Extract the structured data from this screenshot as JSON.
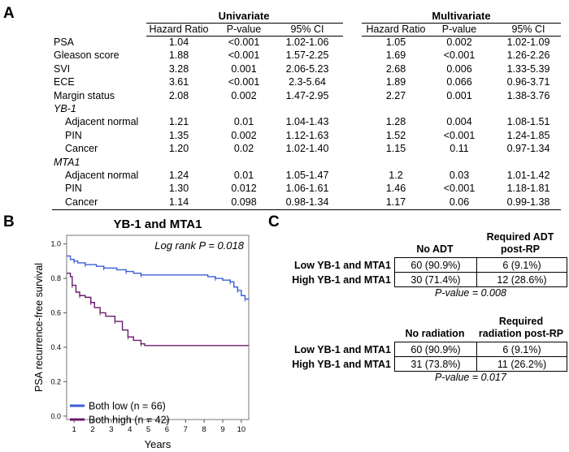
{
  "panel_a": {
    "letter": "A",
    "univariate_title": "Univariate",
    "multivariate_title": "Multivariate",
    "columns": [
      "Hazard Ratio",
      "P-value",
      "95% CI"
    ],
    "rows": [
      {
        "label": "PSA",
        "indent": false,
        "italic": false,
        "u": [
          "1.04",
          "<0.001",
          "1.02-1.06"
        ],
        "m": [
          "1.05",
          "0.002",
          "1.02-1.09"
        ]
      },
      {
        "label": "Gleason score",
        "indent": false,
        "italic": false,
        "u": [
          "1.88",
          "<0.001",
          "1.57-2.25"
        ],
        "m": [
          "1.69",
          "<0.001",
          "1.26-2.26"
        ]
      },
      {
        "label": "SVI",
        "indent": false,
        "italic": false,
        "u": [
          "3.28",
          "0.001",
          "2.06-5.23"
        ],
        "m": [
          "2.68",
          "0.006",
          "1.33-5.39"
        ]
      },
      {
        "label": "ECE",
        "indent": false,
        "italic": false,
        "u": [
          "3.61",
          "<0.001",
          "2.3-5.64"
        ],
        "m": [
          "1.89",
          "0.066",
          "0.96-3.71"
        ]
      },
      {
        "label": "Margin status",
        "indent": false,
        "italic": false,
        "u": [
          "2.08",
          "0.002",
          "1.47-2.95"
        ],
        "m": [
          "2.27",
          "0.001",
          "1.38-3.76"
        ]
      },
      {
        "label": "YB-1",
        "indent": false,
        "italic": true,
        "u": [
          "",
          "",
          ""
        ],
        "m": [
          "",
          "",
          ""
        ]
      },
      {
        "label": "Adjacent normal",
        "indent": true,
        "italic": false,
        "u": [
          "1.21",
          "0.01",
          "1.04-1.43"
        ],
        "m": [
          "1.28",
          "0.004",
          "1.08-1.51"
        ]
      },
      {
        "label": "PIN",
        "indent": true,
        "italic": false,
        "u": [
          "1.35",
          "0.002",
          "1.12-1.63"
        ],
        "m": [
          "1.52",
          "<0.001",
          "1.24-1.85"
        ]
      },
      {
        "label": "Cancer",
        "indent": true,
        "italic": false,
        "u": [
          "1.20",
          "0.02",
          "1.02-1.40"
        ],
        "m": [
          "1.15",
          "0.11",
          "0.97-1.34"
        ]
      },
      {
        "label": "MTA1",
        "indent": false,
        "italic": true,
        "u": [
          "",
          "",
          ""
        ],
        "m": [
          "",
          "",
          ""
        ]
      },
      {
        "label": "Adjacent normal",
        "indent": true,
        "italic": false,
        "u": [
          "1.24",
          "0.01",
          "1.05-1.47"
        ],
        "m": [
          "1.2",
          "0.03",
          "1.01-1.42"
        ]
      },
      {
        "label": "PIN",
        "indent": true,
        "italic": false,
        "u": [
          "1.30",
          "0.012",
          "1.06-1.61"
        ],
        "m": [
          "1.46",
          "<0.001",
          "1.18-1.81"
        ]
      },
      {
        "label": "Cancer",
        "indent": true,
        "italic": false,
        "u": [
          "1.14",
          "0.098",
          "0.98-1.34"
        ],
        "m": [
          "1.17",
          "0.06",
          "0.99-1.38"
        ]
      }
    ]
  },
  "panel_b": {
    "letter": "B",
    "annotation": "Log rank P = 0.018"
  },
  "panel_c": {
    "letter": "C",
    "table1": {
      "col1": "No ADT",
      "col2_line1": "Required ADT",
      "col2_line2": "post-RP",
      "rows": [
        {
          "label": "Low YB-1 and MTA1",
          "a": "60 (90.9%)",
          "b": "6 (9.1%)"
        },
        {
          "label": "High YB-1 and MTA1",
          "a": "30 (71.4%)",
          "b": "12 (28.6%)"
        }
      ],
      "pvalue": "P-value = 0.008"
    },
    "table2": {
      "col1": "No radiation",
      "col2_line1": "Required",
      "col2_line2": "radiation post-RP",
      "rows": [
        {
          "label": "Low YB-1 and MTA1",
          "a": "60 (90.9%)",
          "b": "6 (9.1%)"
        },
        {
          "label": "High YB-1 and MTA1",
          "a": "31 (73.8%)",
          "b": "11 (26.2%)"
        }
      ],
      "pvalue": "P-value = 0.017"
    }
  },
  "chart_data": {
    "type": "line",
    "title": "YB-1 and MTA1",
    "xlabel": "Years",
    "ylabel": "PSA recurrence-free  survival",
    "xlim": [
      0.6,
      10.4
    ],
    "ylim": [
      -0.02,
      1.05
    ],
    "xticks": [
      "1",
      "2",
      "3",
      "4",
      "5",
      "6",
      "7",
      "8",
      "9",
      "10"
    ],
    "yticks": [
      "0.0",
      "0.2",
      "0.4",
      "0.6",
      "0.8",
      "1.0"
    ],
    "legend_position": "bottom-left",
    "series": [
      {
        "name": "Both low (n = 66)",
        "color": "#3a5fd6",
        "points": [
          [
            0.6,
            0.93
          ],
          [
            0.8,
            0.91
          ],
          [
            1.0,
            0.9
          ],
          [
            1.2,
            0.89
          ],
          [
            1.6,
            0.88
          ],
          [
            2.2,
            0.87
          ],
          [
            2.6,
            0.86
          ],
          [
            3.3,
            0.85
          ],
          [
            3.8,
            0.84
          ],
          [
            4.2,
            0.83
          ],
          [
            4.6,
            0.82
          ],
          [
            8.2,
            0.81
          ],
          [
            8.6,
            0.8
          ],
          [
            9.0,
            0.79
          ],
          [
            9.4,
            0.78
          ],
          [
            9.6,
            0.75
          ],
          [
            9.8,
            0.73
          ],
          [
            10.0,
            0.7
          ],
          [
            10.2,
            0.68
          ],
          [
            10.4,
            0.68
          ]
        ]
      },
      {
        "name": "Both high (n = 42)",
        "color": "#6a1b6e",
        "points": [
          [
            0.6,
            0.83
          ],
          [
            0.8,
            0.81
          ],
          [
            0.9,
            0.76
          ],
          [
            1.1,
            0.72
          ],
          [
            1.3,
            0.7
          ],
          [
            1.6,
            0.69
          ],
          [
            1.9,
            0.66
          ],
          [
            2.1,
            0.63
          ],
          [
            2.4,
            0.6
          ],
          [
            2.7,
            0.58
          ],
          [
            3.2,
            0.55
          ],
          [
            3.6,
            0.5
          ],
          [
            3.9,
            0.46
          ],
          [
            4.2,
            0.44
          ],
          [
            4.6,
            0.42
          ],
          [
            4.8,
            0.41
          ],
          [
            10.4,
            0.41
          ]
        ]
      }
    ]
  }
}
